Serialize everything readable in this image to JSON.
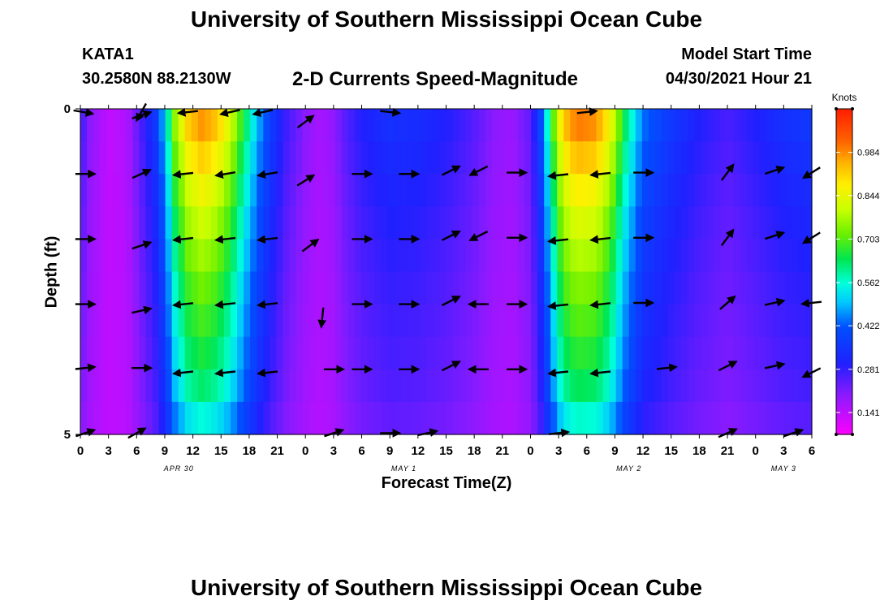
{
  "header": {
    "title": "University of Southern Mississippi Ocean Cube",
    "station_id": "KATA1",
    "coords": "30.2580N  88.2130W",
    "subtitle": "2-D Currents Speed-Magnitude",
    "start_label": "Model Start Time",
    "start_time": "04/30/2021 Hour 21"
  },
  "footer": {
    "title": "University of Southern Mississippi Ocean Cube"
  },
  "chart_data": {
    "type": "heatmap",
    "title": "2-D Currents Speed-Magnitude",
    "xlabel": "Forecast Time(Z)",
    "ylabel": "Depth (ft)",
    "x_hours": [
      0,
      3,
      6,
      9,
      12,
      15,
      18,
      21,
      24,
      27,
      30,
      33,
      36,
      39,
      42,
      45,
      48,
      51,
      54,
      57,
      60,
      63,
      66,
      69,
      72,
      75,
      78
    ],
    "x_tick_labels": [
      "0",
      "3",
      "6",
      "9",
      "12",
      "15",
      "18",
      "21",
      "0",
      "3",
      "6",
      "9",
      "12",
      "15",
      "18",
      "21",
      "0",
      "3",
      "6",
      "9",
      "12",
      "15",
      "18",
      "21",
      "0",
      "3",
      "6"
    ],
    "date_labels": [
      {
        "label": "APR 30",
        "hour": 10.5
      },
      {
        "label": "MAY 1",
        "hour": 34.5
      },
      {
        "label": "MAY 2",
        "hour": 58.5
      },
      {
        "label": "MAY 3",
        "hour": 75
      }
    ],
    "y_ticks": [
      {
        "value": 0,
        "label": "0"
      },
      {
        "value": 5,
        "label": "5"
      }
    ],
    "ylim": [
      0,
      5
    ],
    "depth_rows": [
      0.25,
      0.75,
      1.25,
      1.75,
      2.25,
      2.75,
      3.25,
      3.75,
      4.25,
      4.75
    ],
    "speed_profile": {
      "hours": [
        0,
        1,
        3,
        5,
        6.5,
        8,
        9,
        10,
        11.5,
        13,
        14.5,
        16,
        17.5,
        19,
        20.5,
        22,
        24,
        25.5,
        27,
        28,
        30,
        33,
        36,
        39,
        42,
        44,
        46,
        48,
        49,
        50,
        51,
        52,
        53,
        55,
        56.5,
        58,
        60,
        63,
        66,
        69,
        72,
        75,
        78
      ],
      "values": [
        0.28,
        0.2,
        0.14,
        0.16,
        0.26,
        0.36,
        0.5,
        0.74,
        0.92,
        0.98,
        0.93,
        0.82,
        0.64,
        0.48,
        0.36,
        0.27,
        0.2,
        0.17,
        0.19,
        0.24,
        0.3,
        0.34,
        0.33,
        0.3,
        0.25,
        0.2,
        0.18,
        0.24,
        0.38,
        0.6,
        0.84,
        0.96,
        1.0,
        0.98,
        0.86,
        0.64,
        0.44,
        0.36,
        0.3,
        0.26,
        0.3,
        0.34,
        0.36
      ],
      "depth_factor": [
        1.0,
        0.93,
        0.86,
        0.8,
        0.75,
        0.7,
        0.66,
        0.62,
        0.58,
        0.5
      ],
      "depth_floor": 0.14
    },
    "vectors": [
      {
        "hour": 0.3,
        "depth": 0.05,
        "u": 0.9,
        "v": -0.15
      },
      {
        "hour": 6.5,
        "depth": 0.05,
        "u": -0.5,
        "v": -0.9
      },
      {
        "hour": 6.5,
        "depth": 0.1,
        "u": 0.9,
        "v": 0.3
      },
      {
        "hour": 11.5,
        "depth": 0.05,
        "u": -0.9,
        "v": -0.1
      },
      {
        "hour": 16,
        "depth": 0.05,
        "u": -0.9,
        "v": -0.2
      },
      {
        "hour": 19.5,
        "depth": 0.05,
        "u": -0.9,
        "v": -0.2
      },
      {
        "hour": 24,
        "depth": 0.2,
        "u": 0.8,
        "v": 0.6
      },
      {
        "hour": 33,
        "depth": 0.05,
        "u": 0.9,
        "v": -0.1
      },
      {
        "hour": 54,
        "depth": 0.05,
        "u": 0.9,
        "v": 0.1
      },
      {
        "hour": 0.5,
        "depth": 1.0,
        "u": 0.9,
        "v": 0
      },
      {
        "hour": 6.5,
        "depth": 1.0,
        "u": 0.9,
        "v": 0.4
      },
      {
        "hour": 11,
        "depth": 1.0,
        "u": -0.9,
        "v": -0.1
      },
      {
        "hour": 15.5,
        "depth": 1.0,
        "u": -0.9,
        "v": -0.15
      },
      {
        "hour": 20,
        "depth": 1.0,
        "u": -0.9,
        "v": -0.15
      },
      {
        "hour": 24,
        "depth": 1.1,
        "u": 0.8,
        "v": 0.5
      },
      {
        "hour": 30,
        "depth": 1.0,
        "u": 0.9,
        "v": 0
      },
      {
        "hour": 35,
        "depth": 1.0,
        "u": 0.9,
        "v": 0
      },
      {
        "hour": 39.5,
        "depth": 0.95,
        "u": 0.8,
        "v": 0.4
      },
      {
        "hour": 42.5,
        "depth": 0.95,
        "u": -0.8,
        "v": -0.4
      },
      {
        "hour": 46.5,
        "depth": 0.98,
        "u": 0.9,
        "v": 0
      },
      {
        "hour": 51,
        "depth": 1.02,
        "u": -0.9,
        "v": -0.1
      },
      {
        "hour": 55.5,
        "depth": 1.0,
        "u": -0.9,
        "v": -0.1
      },
      {
        "hour": 60,
        "depth": 0.98,
        "u": 0.9,
        "v": 0
      },
      {
        "hour": 69,
        "depth": 0.98,
        "u": 0.6,
        "v": 0.8
      },
      {
        "hour": 74,
        "depth": 0.95,
        "u": 0.9,
        "v": 0.3
      },
      {
        "hour": 78,
        "depth": 0.98,
        "u": -0.8,
        "v": -0.5
      },
      {
        "hour": 0.5,
        "depth": 2.0,
        "u": 0.9,
        "v": 0
      },
      {
        "hour": 6.5,
        "depth": 2.1,
        "u": 0.9,
        "v": 0.3
      },
      {
        "hour": 11,
        "depth": 2.0,
        "u": -0.9,
        "v": -0.1
      },
      {
        "hour": 15.5,
        "depth": 2.0,
        "u": -0.9,
        "v": -0.1
      },
      {
        "hour": 20,
        "depth": 2.0,
        "u": -0.9,
        "v": -0.1
      },
      {
        "hour": 24.5,
        "depth": 2.1,
        "u": 0.8,
        "v": 0.6
      },
      {
        "hour": 30,
        "depth": 2.0,
        "u": 0.9,
        "v": 0
      },
      {
        "hour": 35,
        "depth": 2.0,
        "u": 0.9,
        "v": 0
      },
      {
        "hour": 39.5,
        "depth": 1.95,
        "u": 0.8,
        "v": 0.4
      },
      {
        "hour": 42.5,
        "depth": 1.95,
        "u": -0.8,
        "v": -0.4
      },
      {
        "hour": 46.5,
        "depth": 1.98,
        "u": 0.9,
        "v": 0
      },
      {
        "hour": 51,
        "depth": 2.02,
        "u": -0.9,
        "v": -0.1
      },
      {
        "hour": 55.5,
        "depth": 2.0,
        "u": -0.9,
        "v": -0.1
      },
      {
        "hour": 60,
        "depth": 1.98,
        "u": 0.9,
        "v": 0
      },
      {
        "hour": 69,
        "depth": 1.98,
        "u": 0.6,
        "v": 0.8
      },
      {
        "hour": 74,
        "depth": 1.95,
        "u": 0.9,
        "v": 0.3
      },
      {
        "hour": 78,
        "depth": 1.98,
        "u": -0.8,
        "v": -0.5
      },
      {
        "hour": 0.5,
        "depth": 3.0,
        "u": 0.9,
        "v": 0
      },
      {
        "hour": 6.5,
        "depth": 3.1,
        "u": 0.9,
        "v": 0.2
      },
      {
        "hour": 11,
        "depth": 3.0,
        "u": -0.9,
        "v": -0.1
      },
      {
        "hour": 15.5,
        "depth": 3.0,
        "u": -0.9,
        "v": -0.1
      },
      {
        "hour": 20,
        "depth": 3.0,
        "u": -0.9,
        "v": -0.1
      },
      {
        "hour": 25.8,
        "depth": 3.2,
        "u": -0.1,
        "v": -0.95
      },
      {
        "hour": 30,
        "depth": 3.0,
        "u": 0.9,
        "v": 0
      },
      {
        "hour": 35,
        "depth": 3.0,
        "u": 0.9,
        "v": 0
      },
      {
        "hour": 39.5,
        "depth": 2.95,
        "u": 0.8,
        "v": 0.4
      },
      {
        "hour": 42.5,
        "depth": 3.0,
        "u": -0.9,
        "v": 0
      },
      {
        "hour": 46.5,
        "depth": 3.0,
        "u": 0.9,
        "v": 0
      },
      {
        "hour": 51,
        "depth": 3.02,
        "u": -0.9,
        "v": -0.1
      },
      {
        "hour": 55.5,
        "depth": 3.0,
        "u": -0.9,
        "v": -0.1
      },
      {
        "hour": 60,
        "depth": 2.98,
        "u": 0.9,
        "v": 0
      },
      {
        "hour": 69,
        "depth": 2.98,
        "u": 0.7,
        "v": 0.6
      },
      {
        "hour": 74,
        "depth": 2.98,
        "u": 0.9,
        "v": 0.2
      },
      {
        "hour": 78,
        "depth": 2.98,
        "u": -0.9,
        "v": -0.1
      },
      {
        "hour": 0.5,
        "depth": 3.98,
        "u": 0.9,
        "v": 0.1
      },
      {
        "hour": 6.5,
        "depth": 3.98,
        "u": 0.9,
        "v": 0
      },
      {
        "hour": 11,
        "depth": 4.05,
        "u": -0.9,
        "v": -0.1
      },
      {
        "hour": 15.5,
        "depth": 4.05,
        "u": -0.9,
        "v": -0.1
      },
      {
        "hour": 20,
        "depth": 4.05,
        "u": -0.9,
        "v": -0.1
      },
      {
        "hour": 27,
        "depth": 4.0,
        "u": 0.9,
        "v": 0
      },
      {
        "hour": 30,
        "depth": 4.0,
        "u": 0.9,
        "v": 0
      },
      {
        "hour": 35,
        "depth": 4.0,
        "u": 0.9,
        "v": 0
      },
      {
        "hour": 39.5,
        "depth": 3.95,
        "u": 0.8,
        "v": 0.4
      },
      {
        "hour": 42.5,
        "depth": 4.0,
        "u": -0.9,
        "v": 0
      },
      {
        "hour": 46.5,
        "depth": 4.0,
        "u": 0.9,
        "v": 0
      },
      {
        "hour": 51,
        "depth": 4.05,
        "u": -0.9,
        "v": -0.1
      },
      {
        "hour": 55.5,
        "depth": 4.05,
        "u": -0.9,
        "v": -0.1
      },
      {
        "hour": 62.5,
        "depth": 3.98,
        "u": 0.9,
        "v": 0.1
      },
      {
        "hour": 69,
        "depth": 3.95,
        "u": 0.8,
        "v": 0.4
      },
      {
        "hour": 74,
        "depth": 3.95,
        "u": 0.9,
        "v": 0.2
      },
      {
        "hour": 78,
        "depth": 4.05,
        "u": -0.8,
        "v": -0.4
      },
      {
        "hour": 0.5,
        "depth": 4.98,
        "u": 0.9,
        "v": 0.3
      },
      {
        "hour": 6,
        "depth": 4.98,
        "u": 0.9,
        "v": 0.5
      },
      {
        "hour": 27,
        "depth": 4.98,
        "u": 0.9,
        "v": 0.3
      },
      {
        "hour": 33,
        "depth": 4.98,
        "u": 0.9,
        "v": 0
      },
      {
        "hour": 37,
        "depth": 4.98,
        "u": 0.9,
        "v": 0.2
      },
      {
        "hour": 51,
        "depth": 4.98,
        "u": 0.9,
        "v": 0.1
      },
      {
        "hour": 69,
        "depth": 4.98,
        "u": 0.9,
        "v": 0.4
      },
      {
        "hour": 76,
        "depth": 4.98,
        "u": 0.9,
        "v": 0.3
      }
    ],
    "colorbar": {
      "title": "Knots",
      "min": 0.07,
      "max": 1.125,
      "ticks": [
        0.141,
        0.281,
        0.422,
        0.562,
        0.703,
        0.844,
        0.984
      ],
      "tick_labels": [
        "0.141",
        "0.281",
        "0.422",
        "0.562",
        "0.703",
        "0.844",
        "0.984"
      ],
      "stops": [
        {
          "value": 0.07,
          "color": "#ff00ff"
        },
        {
          "value": 0.2,
          "color": "#8a1aff"
        },
        {
          "value": 0.3,
          "color": "#2020ff"
        },
        {
          "value": 0.42,
          "color": "#0050ff"
        },
        {
          "value": 0.5,
          "color": "#00c8ff"
        },
        {
          "value": 0.56,
          "color": "#00ffdc"
        },
        {
          "value": 0.64,
          "color": "#00e650"
        },
        {
          "value": 0.72,
          "color": "#6af000"
        },
        {
          "value": 0.8,
          "color": "#c8ff00"
        },
        {
          "value": 0.88,
          "color": "#fff000"
        },
        {
          "value": 0.95,
          "color": "#ffb400"
        },
        {
          "value": 1.02,
          "color": "#ff6400"
        },
        {
          "value": 1.125,
          "color": "#ff1e00"
        }
      ]
    }
  }
}
